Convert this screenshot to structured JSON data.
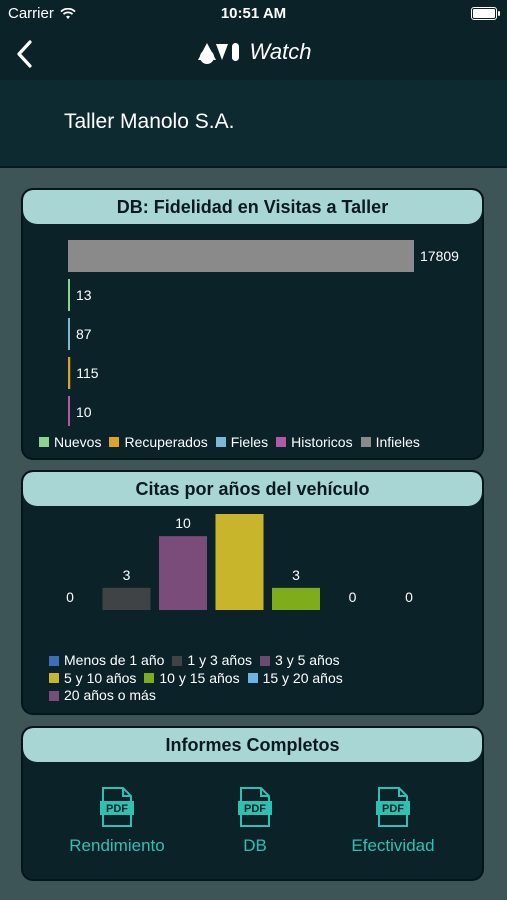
{
  "status_bar": {
    "carrier": "Carrier",
    "time": "10:51 AM"
  },
  "nav": {
    "brand_text": "Watch"
  },
  "header": {
    "company": "Taller Manolo S.A."
  },
  "fidelity_card": {
    "title": "DB: Fidelidad en Visitas a Taller"
  },
  "age_card": {
    "title": "Citas por años del vehículo"
  },
  "reports_card": {
    "title": "Informes Completos",
    "items": [
      {
        "label": "Rendimiento",
        "icon": "pdf-icon",
        "badge": "PDF"
      },
      {
        "label": "DB",
        "icon": "pdf-icon",
        "badge": "PDF"
      },
      {
        "label": "Efectividad",
        "icon": "pdf-icon",
        "badge": "PDF"
      }
    ]
  },
  "chart_data": [
    {
      "type": "bar",
      "orientation": "horizontal",
      "title": "DB: Fidelidad en Visitas a Taller",
      "legend_position": "bottom",
      "grid": false,
      "xlim": [
        0,
        17809
      ],
      "series": [
        {
          "name": "Infieles",
          "value": 17809,
          "color": "#8a8a8a"
        },
        {
          "name": "Nuevos",
          "value": 13,
          "color": "#8bd48b"
        },
        {
          "name": "Fieles",
          "value": 87,
          "color": "#7ab8d8"
        },
        {
          "name": "Recuperados",
          "value": 115,
          "color": "#e0a12a"
        },
        {
          "name": "Historicos",
          "value": 10,
          "color": "#b05aa6"
        }
      ],
      "legend": [
        {
          "name": "Nuevos",
          "color": "#8bd48b"
        },
        {
          "name": "Recuperados",
          "color": "#e0a12a"
        },
        {
          "name": "Fieles",
          "color": "#7ab8d8"
        },
        {
          "name": "Historicos",
          "color": "#b05aa6"
        },
        {
          "name": "Infieles",
          "color": "#8a8a8a"
        }
      ]
    },
    {
      "type": "bar",
      "title": "Citas por años del vehículo",
      "legend_position": "bottom",
      "grid": false,
      "ylim": [
        0,
        13
      ],
      "categories": [
        "Menos de 1 año",
        "1 y 3 años",
        "20 años o más",
        "5 y 10 años",
        "10 y 15 años",
        "3 y 5 años",
        "15 y 20 años"
      ],
      "values": [
        0,
        3,
        10,
        13,
        3,
        0,
        0
      ],
      "colors": [
        "#3d6fb8",
        "#3f4345",
        "#7a4c7a",
        "#c8b52c",
        "#7fac1a",
        "#6a4a6e",
        "#6cb4e4"
      ],
      "legend": [
        {
          "name": "Menos de 1 año",
          "color": "#3d6fb8"
        },
        {
          "name": "1 y 3 años",
          "color": "#3f4345"
        },
        {
          "name": "3 y 5 años",
          "color": "#6a4a6e"
        },
        {
          "name": "5 y 10 años",
          "color": "#c8b52c"
        },
        {
          "name": "10 y 15 años",
          "color": "#7fac1a"
        },
        {
          "name": "15 y 20 años",
          "color": "#6cb4e4"
        },
        {
          "name": "20 años o más",
          "color": "#7a4c7a"
        }
      ]
    }
  ],
  "colors": {
    "background": "#3e5558",
    "bar": "#0a2228",
    "card_header": "#a7d6d4",
    "accent": "#2fc0b4"
  }
}
